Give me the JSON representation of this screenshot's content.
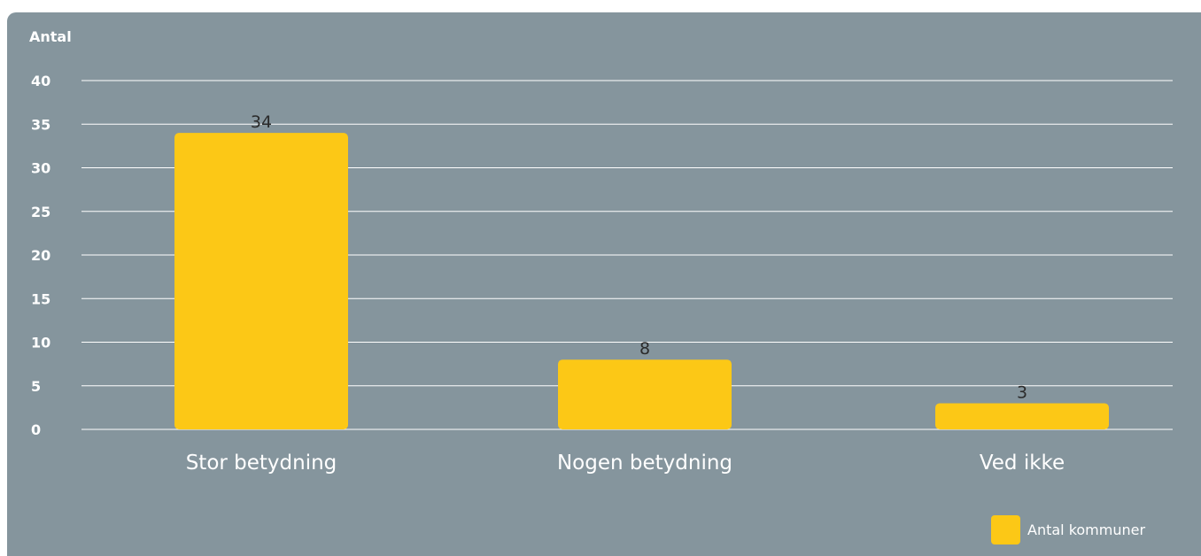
{
  "chart_data": {
    "type": "bar",
    "ylabel": "Antal",
    "categories": [
      "Stor betydning",
      "Nogen betydning",
      "Ved ikke"
    ],
    "series": [
      {
        "name": "Antal kommuner",
        "values": [
          34,
          8,
          3
        ]
      }
    ],
    "data_labels": [
      "34",
      "8",
      "3"
    ],
    "ylim": [
      0,
      40
    ],
    "yticks": [
      0,
      5,
      10,
      15,
      20,
      25,
      30,
      35,
      40
    ],
    "grid": true,
    "legend_position": "bottom-right",
    "colors": {
      "background": "#85959d",
      "bar": "#fcc816",
      "grid": "#ffffff"
    }
  }
}
